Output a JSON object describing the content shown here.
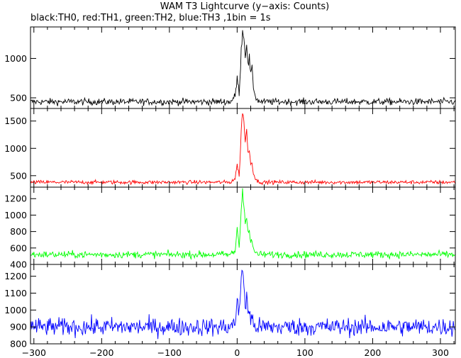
{
  "title": "WAM T3 Lightcurve (y−axis: Counts)",
  "subtitle": "black:TH0, red:TH1, green:TH2, blue:TH3 ,1bin = 1s",
  "chart_data": {
    "type": "line",
    "title": "WAM T3 Lightcurve (y−axis: Counts)",
    "subtitle": "black:TH0, red:TH1, green:TH2, blue:TH3 ,1bin = 1s",
    "xlabel": "",
    "ylabel": "Counts",
    "xlim": [
      -305,
      322
    ],
    "x_ticks": [
      -300,
      -200,
      -100,
      0,
      100,
      200,
      300
    ],
    "x_tick_labels": [
      "−300",
      "−200",
      "−100",
      "0",
      "100",
      "200",
      "300"
    ],
    "grid": false,
    "bin_seconds": 1,
    "series": [
      {
        "name": "TH0",
        "color": "#000000",
        "ylim": [
          365,
          1400
        ],
        "y_ticks": [
          500,
          1000
        ],
        "baseline": 450,
        "noise": 30,
        "x": [
          -305,
          -10,
          -3,
          0,
          3,
          6,
          8,
          10,
          12,
          14,
          16,
          18,
          20,
          22,
          24,
          26,
          28,
          30,
          35,
          322
        ],
        "values": [
          450,
          450,
          520,
          750,
          560,
          1100,
          1380,
          1250,
          1050,
          1200,
          900,
          1000,
          800,
          850,
          650,
          550,
          500,
          470,
          450,
          450
        ]
      },
      {
        "name": "TH1",
        "color": "#ff0000",
        "ylim": [
          290,
          1730
        ],
        "y_ticks": [
          500,
          1000,
          1500
        ],
        "baseline": 380,
        "noise": 25,
        "x": [
          -305,
          -10,
          -3,
          0,
          3,
          6,
          8,
          10,
          12,
          14,
          16,
          18,
          20,
          22,
          24,
          26,
          28,
          30,
          35,
          322
        ],
        "values": [
          380,
          380,
          450,
          700,
          500,
          1300,
          1700,
          1500,
          1100,
          1350,
          900,
          1000,
          700,
          750,
          550,
          480,
          420,
          400,
          380,
          380
        ]
      },
      {
        "name": "TH2",
        "color": "#00ff00",
        "ylim": [
          400,
          1340
        ],
        "y_ticks": [
          400,
          600,
          800,
          1000,
          1200
        ],
        "baseline": 520,
        "noise": 30,
        "x": [
          -305,
          -10,
          -3,
          0,
          3,
          6,
          8,
          10,
          12,
          14,
          16,
          18,
          20,
          22,
          24,
          26,
          28,
          30,
          35,
          322
        ],
        "values": [
          520,
          520,
          560,
          850,
          620,
          1050,
          1330,
          1150,
          900,
          1000,
          780,
          820,
          650,
          680,
          580,
          560,
          540,
          530,
          520,
          520
        ]
      },
      {
        "name": "TH3",
        "color": "#0000ff",
        "ylim": [
          800,
          1270
        ],
        "y_ticks": [
          800,
          900,
          1000,
          1100,
          1200
        ],
        "baseline": 900,
        "noise": 38,
        "x": [
          -305,
          -10,
          -3,
          0,
          3,
          6,
          8,
          10,
          12,
          14,
          16,
          18,
          20,
          22,
          24,
          26,
          28,
          30,
          35,
          322
        ],
        "values": [
          900,
          900,
          930,
          1050,
          960,
          1200,
          1260,
          1150,
          1020,
          1080,
          980,
          1000,
          940,
          950,
          920,
          910,
          905,
          900,
          900,
          900
        ]
      }
    ]
  }
}
